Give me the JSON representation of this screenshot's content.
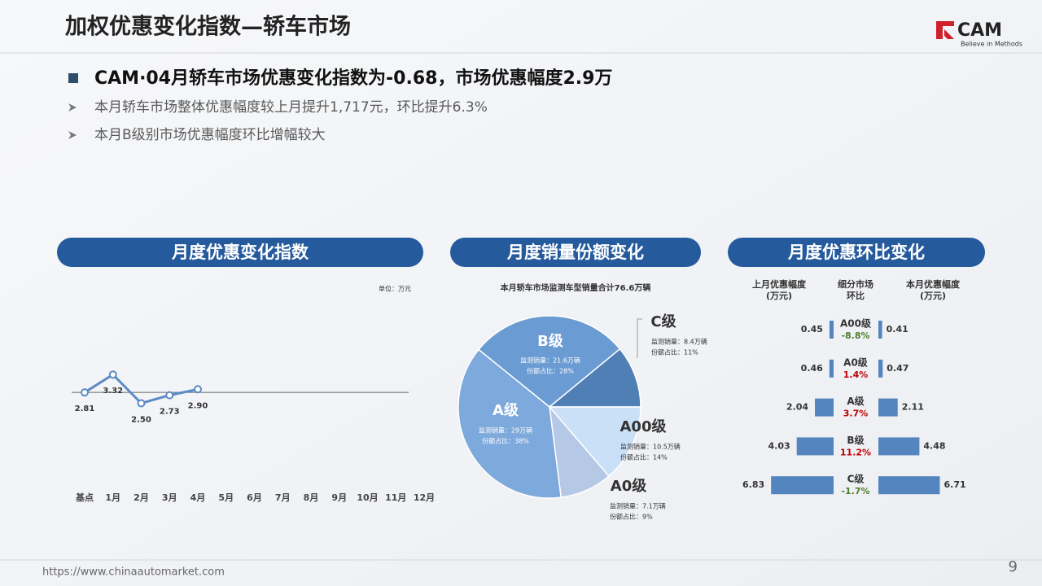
{
  "header": {
    "title": "加权优惠变化指数—轿车市场",
    "logo": "CAM",
    "tagline": "Believe in Methods"
  },
  "bullets": {
    "main": "CAM·04月轿车市场优惠变化指数为-0.68，市场优惠幅度2.9万",
    "items": [
      "本月轿车市场整体优惠幅度较上月提升1,717元，环比提升6.3%",
      "本月B级别市场优惠幅度环比增幅较大"
    ]
  },
  "footer": {
    "url": "https://www.chinaautomarket.com",
    "page": "9"
  },
  "chart_data": [
    {
      "type": "line",
      "title": "月度优惠变化指数",
      "unit": "单位：万元",
      "categories": [
        "基点",
        "1月",
        "2月",
        "3月",
        "4月",
        "5月",
        "6月",
        "7月",
        "8月",
        "9月",
        "10月",
        "11月",
        "12月"
      ],
      "values": [
        2.81,
        3.32,
        2.5,
        2.73,
        2.9,
        null,
        null,
        null,
        null,
        null,
        null,
        null,
        null
      ],
      "value_labels": [
        "2.81",
        "3.32",
        "2.50",
        "2.73",
        "2.90",
        null,
        null,
        null,
        null,
        null,
        null,
        null,
        null
      ],
      "color": "#5b8ac6",
      "ylim": [
        0,
        6
      ]
    },
    {
      "type": "pie",
      "title": "月度销量份额变化",
      "subtitle": "本月轿车市场监测车型销量合计76.6万辆",
      "categories": [
        "B级",
        "C级",
        "A00级",
        "A0级",
        "A级"
      ],
      "values": [
        21.6,
        8.4,
        10.5,
        7.1,
        29
      ],
      "value_labels": [
        "监测销量：21.6万辆",
        "监测销量：8.4万辆",
        "监测销量：10.5万辆",
        "监测销量：7.1万辆",
        "监测销量：29万辆"
      ],
      "shares": [
        28,
        11,
        14,
        9,
        38
      ],
      "share_labels": [
        "份额占比：28%",
        "份额占比：11%",
        "份额占比：14%",
        "份额占比：9%",
        "份额占比：38%"
      ],
      "colors": [
        "#6a9bd2",
        "#4f7fb5",
        "#c9e0f7",
        "#b5c9e6",
        "#7ea9dc"
      ]
    },
    {
      "type": "butterfly",
      "title": "月度优惠环比变化",
      "left_label": [
        "上月优惠幅度",
        "(万元)"
      ],
      "center_label": [
        "细分市场",
        "环比"
      ],
      "right_label": [
        "本月优惠幅度",
        "(万元)"
      ],
      "categories": [
        "A00级",
        "A0级",
        "A级",
        "B级",
        "C级"
      ],
      "previous": [
        0.45,
        0.46,
        2.04,
        4.03,
        6.83
      ],
      "current": [
        0.41,
        0.47,
        2.11,
        4.48,
        6.71
      ],
      "change": [
        -8.8,
        1.4,
        3.7,
        11.2,
        -1.7
      ],
      "change_labels": [
        "-8.8%",
        "1.4%",
        "3.7%",
        "11.2%",
        "-1.7%"
      ],
      "color": "#5585bf",
      "up_color": "#c00000",
      "down_color": "#4f7d2b",
      "xlim": [
        0,
        8
      ]
    }
  ]
}
